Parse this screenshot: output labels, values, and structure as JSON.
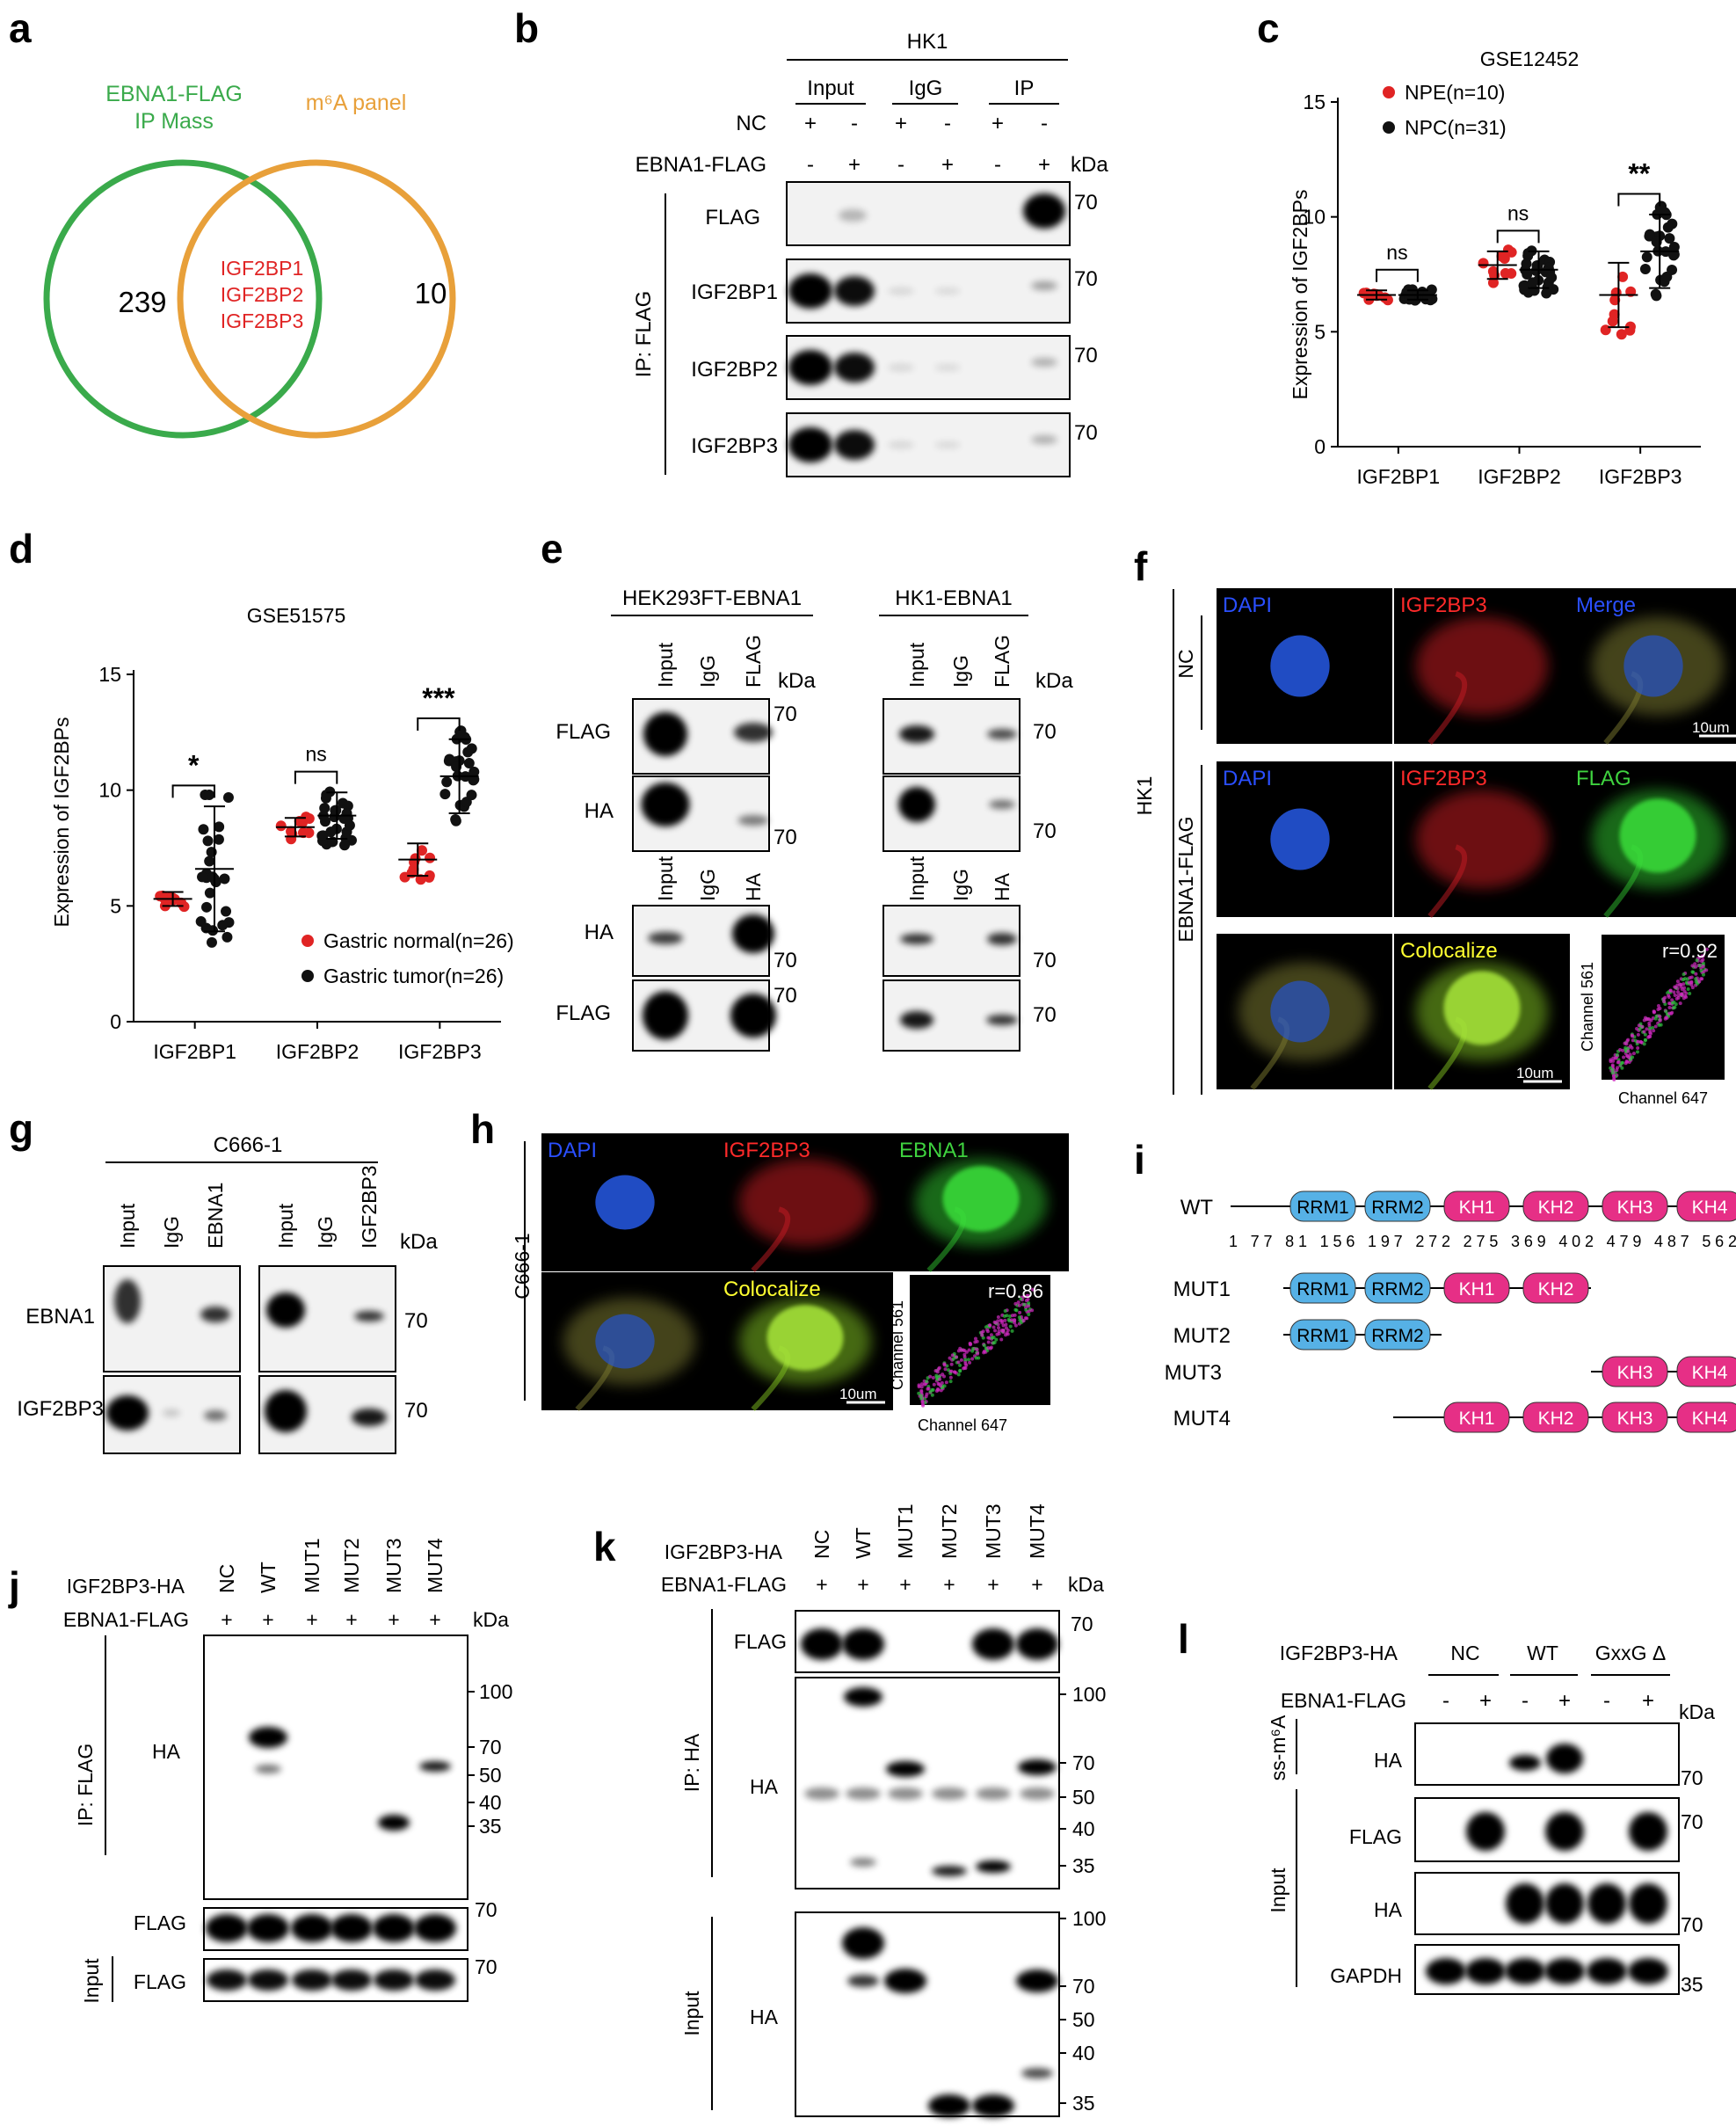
{
  "panel_labels": [
    "a",
    "b",
    "c",
    "d",
    "e",
    "f",
    "g",
    "h",
    "i",
    "j",
    "k",
    "l"
  ],
  "a": {
    "set1": [
      "EBNA1-FLAG",
      "IP Mass"
    ],
    "set2": "m⁶A panel",
    "left_count": "239",
    "right_count": "10",
    "overlap": [
      "IGF2BP1",
      "IGF2BP2",
      "IGF2BP3"
    ],
    "colors": {
      "set1": "#3aaa4b",
      "set2": "#e8a03a",
      "overlap": "#e02424"
    }
  },
  "b": {
    "cell": "HK1",
    "groups": [
      "Input",
      "IgG",
      "IP"
    ],
    "row_labels": [
      "NC",
      "EBNA1-FLAG"
    ],
    "nc_signs": [
      "+",
      "-",
      "+",
      "-",
      "+",
      "-"
    ],
    "ebna_signs": [
      "-",
      "+",
      "-",
      "+",
      "-",
      "+"
    ],
    "kda": "kDa",
    "side_label": "IP: FLAG",
    "blots": [
      "FLAG",
      "IGF2BP1",
      "IGF2BP2",
      "IGF2BP3"
    ],
    "marker": "70"
  },
  "chart_data": [
    {
      "panel": "c",
      "type": "scatter",
      "title": "GSE12452",
      "ylabel": "Expression of IGF2BPs",
      "categories": [
        "IGF2BP1",
        "IGF2BP2",
        "IGF2BP3"
      ],
      "ylim": [
        0,
        15
      ],
      "yticks": [
        "0",
        "5",
        "10",
        "15"
      ],
      "series": [
        {
          "name": "NPE(n=10)",
          "color": "#e02424",
          "means": [
            6.6,
            7.9,
            6.6
          ],
          "sd": [
            0.2,
            0.6,
            1.4
          ]
        },
        {
          "name": "NPC(n=31)",
          "color": "#111111",
          "means": [
            6.6,
            7.7,
            8.5
          ],
          "sd": [
            0.2,
            0.8,
            1.6
          ]
        }
      ],
      "significance": [
        "ns",
        "ns",
        "**"
      ]
    },
    {
      "panel": "d",
      "type": "scatter",
      "title": "GSE51575",
      "ylabel": "Expression of IGF2BPs",
      "categories": [
        "IGF2BP1",
        "IGF2BP2",
        "IGF2BP3"
      ],
      "ylim": [
        0,
        15
      ],
      "yticks": [
        "0",
        "5",
        "10",
        "15"
      ],
      "series": [
        {
          "name": "Gastric normal(n=26)",
          "color": "#e02424",
          "means": [
            5.3,
            8.4,
            7.0
          ],
          "sd": [
            0.3,
            0.4,
            0.7
          ]
        },
        {
          "name": "Gastric tumor(n=26)",
          "color": "#111111",
          "means": [
            6.6,
            8.9,
            10.6
          ],
          "sd": [
            2.7,
            1.0,
            1.6
          ]
        }
      ],
      "significance": [
        "*",
        "ns",
        "***"
      ]
    }
  ],
  "e": {
    "left_title": "HEK293FT-EBNA1",
    "right_title": "HK1-EBNA1",
    "top_lanes": [
      "Input",
      "IgG",
      "FLAG"
    ],
    "bottom_lanes": [
      "Input",
      "IgG",
      "HA"
    ],
    "top_blots": [
      "FLAG",
      "HA"
    ],
    "bottom_blots": [
      "HA",
      "FLAG"
    ],
    "kda": "kDa",
    "marker": "70"
  },
  "f": {
    "cell": "HK1",
    "row1": "NC",
    "row2": "EBNA1-FLAG",
    "labels": [
      "DAPI",
      "IGF2BP3",
      "Merge",
      "DAPI",
      "IGF2BP3",
      "FLAG",
      "Colocalize"
    ],
    "merge_parts": [
      "M",
      "er",
      "ge"
    ],
    "scale": "10um",
    "r_value": "r=0.92",
    "xaxis": "Channel 647",
    "yaxis": "Channel 561"
  },
  "g": {
    "cell": "C666-1",
    "lanes": [
      "Input",
      "IgG",
      "EBNA1",
      "Input",
      "IgG",
      "IGF2BP3"
    ],
    "kda": "kDa",
    "blots": [
      "EBNA1",
      "IGF2BP3"
    ],
    "marker": "70"
  },
  "h": {
    "cell": "C666-1",
    "labels": [
      "DAPI",
      "IGF2BP3",
      "EBNA1",
      "Colocalize"
    ],
    "merge_parts": [
      "M",
      "er",
      "ge"
    ],
    "scale": "10um",
    "r_value": "r=0.86",
    "xaxis": "Channel 647",
    "yaxis": "Channel 561"
  },
  "i": {
    "rows": [
      "WT",
      "MUT1",
      "MUT2",
      "MUT3",
      "MUT4"
    ],
    "domains": [
      "RRM1",
      "RRM2",
      "KH1",
      "KH2",
      "KH3",
      "KH4"
    ],
    "positions": [
      "1",
      "77",
      "81",
      "156",
      "197",
      "272",
      "275",
      "369",
      "402",
      "479",
      "487",
      "562"
    ],
    "colors": {
      "rrm": "#56b1e6",
      "kh": "#e62f86"
    }
  },
  "j": {
    "row1": "IGF2BP3-HA",
    "row2": "EBNA1-FLAG",
    "lanes": [
      "NC",
      "WT",
      "MUT1",
      "MUT2",
      "MUT3",
      "MUT4"
    ],
    "plus": [
      "+",
      "+",
      "+",
      "+",
      "+",
      "+"
    ],
    "kda": "kDa",
    "ip_label": "IP:  FLAG",
    "input_label": "Input",
    "blots": [
      "HA",
      "FLAG",
      "FLAG"
    ],
    "markers": [
      "100",
      "70",
      "50",
      "40",
      "35"
    ],
    "marker70": "70"
  },
  "k": {
    "row1": "IGF2BP3-HA",
    "row2": "EBNA1-FLAG",
    "lanes": [
      "NC",
      "WT",
      "MUT1",
      "MUT2",
      "MUT3",
      "MUT4"
    ],
    "plus": [
      "+",
      "+",
      "+",
      "+",
      "+",
      "+"
    ],
    "kda": "kDa",
    "ip_label": "IP:  HA",
    "input_label": "Input",
    "blots": [
      "FLAG",
      "HA",
      "HA"
    ],
    "markers": [
      "100",
      "70",
      "50",
      "40",
      "35"
    ],
    "marker70": "70"
  },
  "l": {
    "row1": "IGF2BP3-HA",
    "row2": "EBNA1-FLAG",
    "groups": [
      "NC",
      "WT",
      "GxxG Δ"
    ],
    "signs": [
      "-",
      "+",
      "-",
      "+",
      "-",
      "+"
    ],
    "kda": "kDa",
    "ss_label": "ss-m⁶A",
    "input_label": "Input",
    "blots": [
      "HA",
      "FLAG",
      "HA",
      "GAPDH"
    ],
    "markers": [
      "70",
      "70",
      "70",
      "35"
    ]
  }
}
